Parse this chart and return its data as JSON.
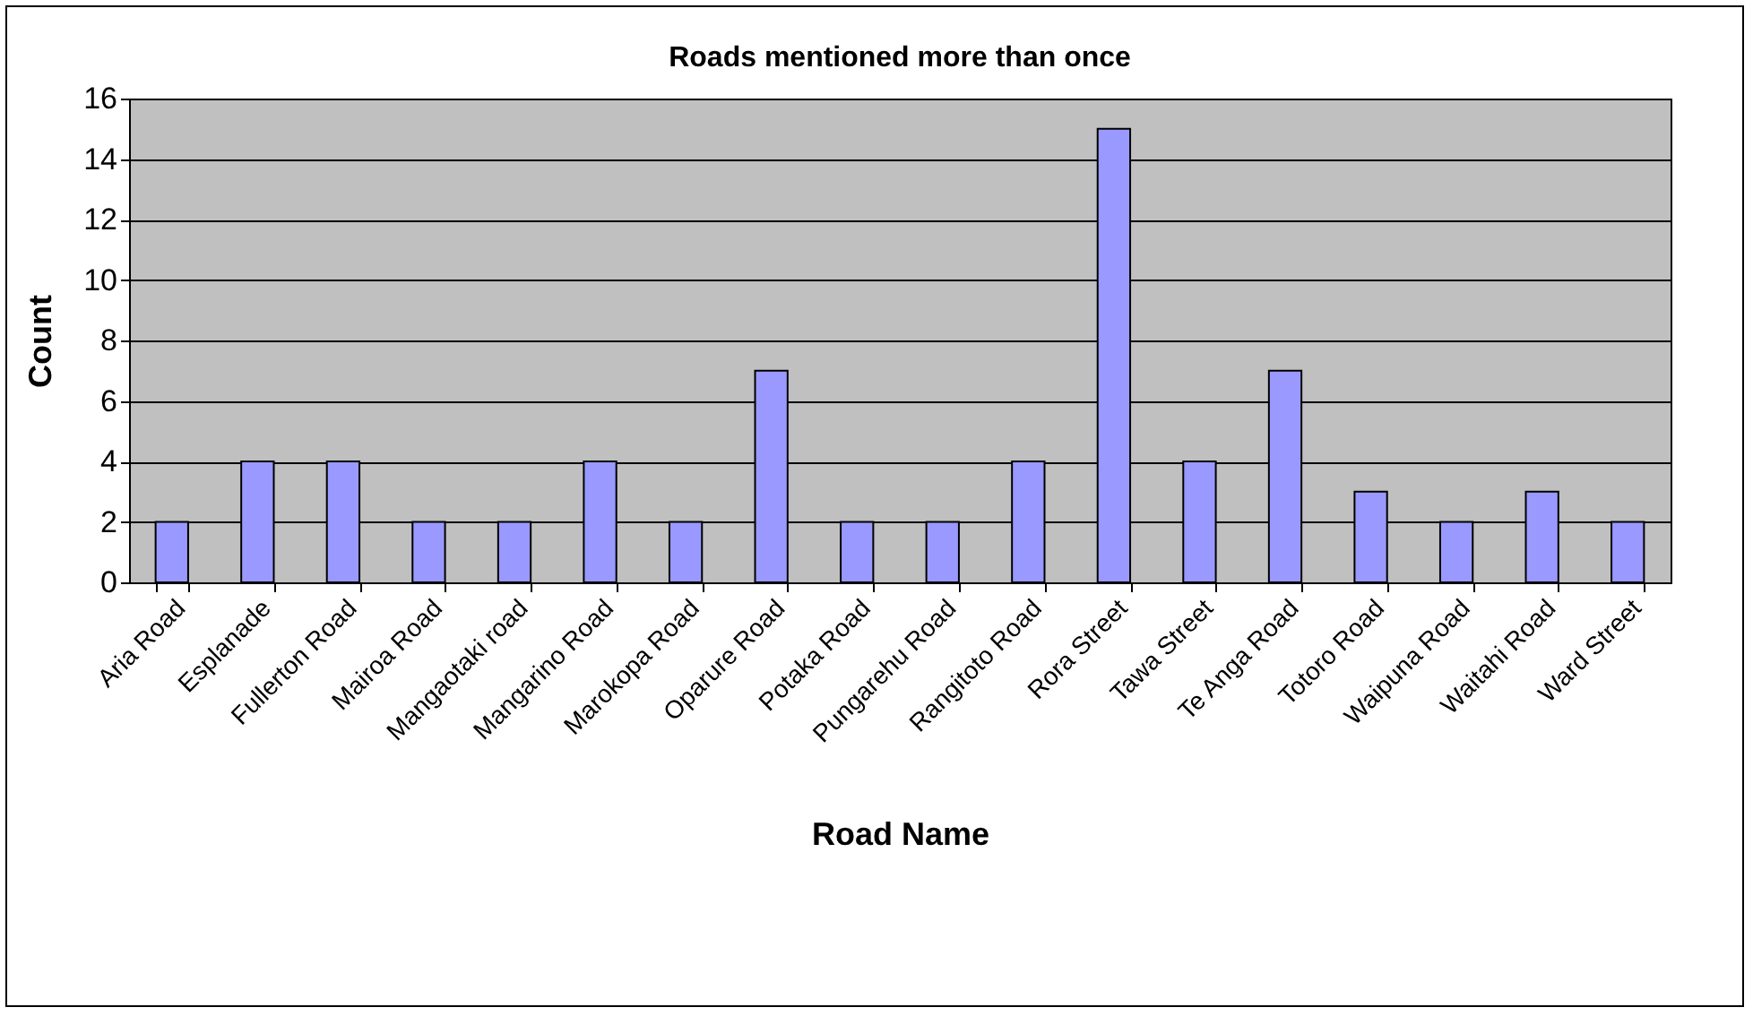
{
  "chart_data": {
    "type": "bar",
    "title": "Roads mentioned more than once",
    "xlabel": "Road Name",
    "ylabel": "Count",
    "categories": [
      "Aria Road",
      "Esplanade",
      "Fullerton Road",
      "Mairoa Road",
      "Mangaotaki road",
      "Mangarino Road",
      "Marokopa Road",
      "Oparure Road",
      "Potaka Road",
      "Pungarehu Road",
      "Rangitoto Road",
      "Rora Street",
      "Tawa Street",
      "Te Anga Road",
      "Totoro Road",
      "Waipuna Road",
      "Waitahi Road",
      "Ward Street"
    ],
    "values": [
      2,
      4,
      4,
      2,
      2,
      4,
      2,
      7,
      2,
      2,
      4,
      15,
      4,
      7,
      3,
      2,
      3,
      2
    ],
    "color": "#9999ff",
    "ylim": [
      0,
      16
    ],
    "yticks": [
      0,
      2,
      4,
      6,
      8,
      10,
      12,
      14,
      16
    ],
    "grid": "y"
  }
}
